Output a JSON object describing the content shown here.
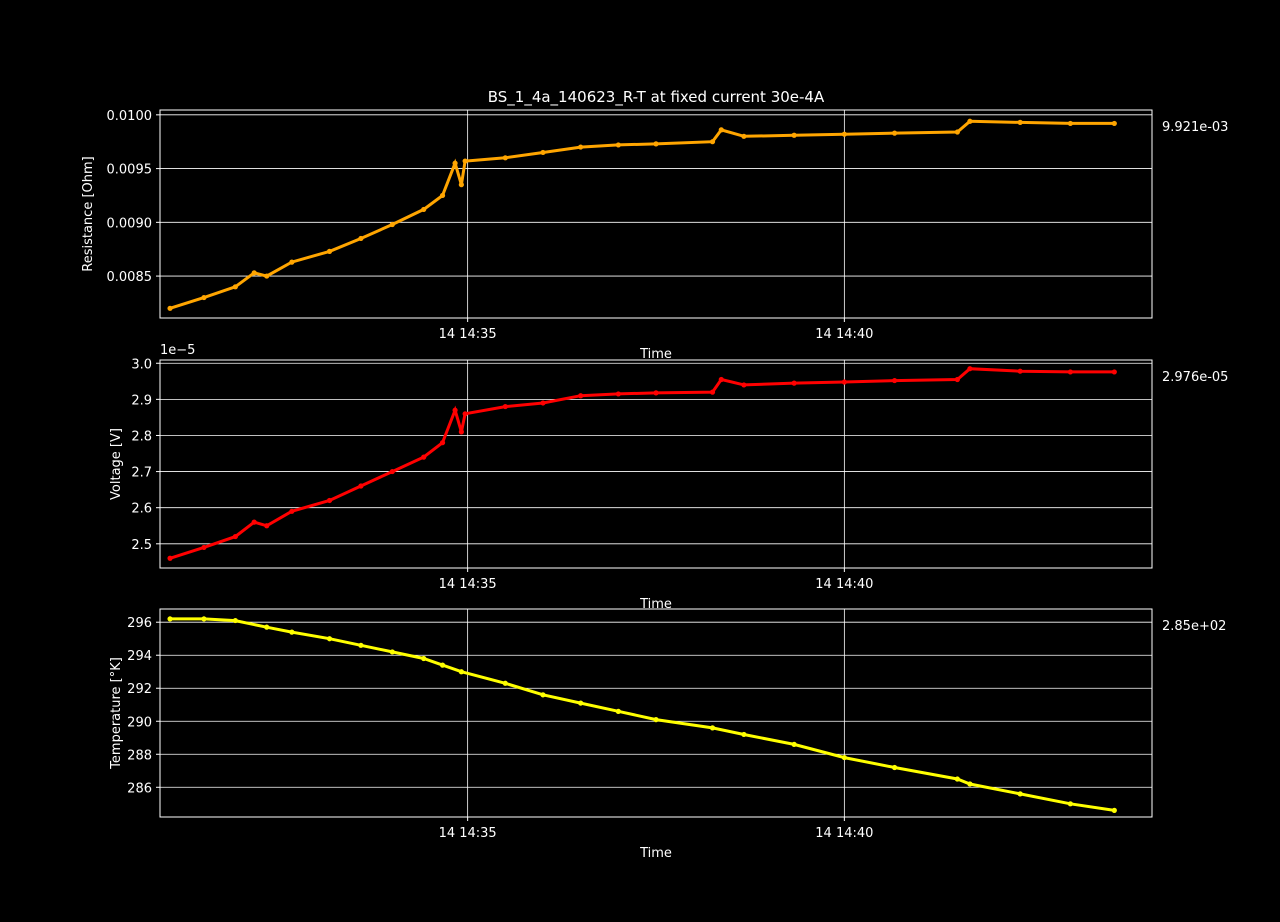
{
  "figure": {
    "title": "BS_1_4a_140623_R-T at fixed current 30e-4A",
    "background": "#000000",
    "text_color": "#ffffff",
    "grid_color": "#ffffff"
  },
  "chart_data": [
    {
      "type": "scatter",
      "xlabel": "Time",
      "ylabel": "Resistance [Ohm]",
      "x_range": [
        "14 14:30:55",
        "14 14:44:05"
      ],
      "xticks": [
        "14 14:35",
        "14 14:40"
      ],
      "yticks": [
        "0.0085",
        "0.0090",
        "0.0095",
        "0.0100"
      ],
      "ylim": [
        0.00811,
        0.010045
      ],
      "offset_text": "",
      "last_value_label": "9.921e-03",
      "grid": true,
      "color": "#ffa500",
      "points": [
        [
          "14 14:31:03",
          0.0082
        ],
        [
          "14 14:31:30",
          0.0083
        ],
        [
          "14 14:31:55",
          0.0084
        ],
        [
          "14 14:32:10",
          0.00853
        ],
        [
          "14 14:32:20",
          0.0085
        ],
        [
          "14 14:32:40",
          0.00863
        ],
        [
          "14 14:33:10",
          0.00873
        ],
        [
          "14 14:33:35",
          0.00885
        ],
        [
          "14 14:34:00",
          0.00898
        ],
        [
          "14 14:34:25",
          0.00912
        ],
        [
          "14 14:34:40",
          0.00925
        ],
        [
          "14 14:34:55",
          0.00935
        ],
        [
          "14 14:34:50",
          0.00955
        ],
        [
          "14 14:34:58",
          0.00957
        ],
        [
          "14 14:35:30",
          0.0096
        ],
        [
          "14 14:36:00",
          0.00965
        ],
        [
          "14 14:36:30",
          0.0097
        ],
        [
          "14 14:37:00",
          0.00972
        ],
        [
          "14 14:37:30",
          0.00973
        ],
        [
          "14 14:38:15",
          0.00975
        ],
        [
          "14 14:38:22",
          0.00986
        ],
        [
          "14 14:38:40",
          0.0098
        ],
        [
          "14 14:39:20",
          0.00981
        ],
        [
          "14 14:40:00",
          0.00982
        ],
        [
          "14 14:40:40",
          0.00983
        ],
        [
          "14 14:41:30",
          0.00984
        ],
        [
          "14 14:41:40",
          0.00994
        ],
        [
          "14 14:42:20",
          0.00993
        ],
        [
          "14 14:43:00",
          0.00992
        ],
        [
          "14 14:43:35",
          0.00992
        ]
      ]
    },
    {
      "type": "scatter",
      "xlabel": "Time",
      "ylabel": "Voltage [V]",
      "x_range": [
        "14 14:30:55",
        "14 14:44:05"
      ],
      "xticks": [
        "14 14:35",
        "14 14:40"
      ],
      "yticks": [
        "2.5",
        "2.6",
        "2.7",
        "2.8",
        "2.9",
        "3.0"
      ],
      "ylim": [
        2.433,
        3.009
      ],
      "offset_text": "1e−5",
      "last_value_label": "2.976e-05",
      "grid": true,
      "color": "#ff0000",
      "points": [
        [
          "14 14:31:03",
          2.46
        ],
        [
          "14 14:31:30",
          2.49
        ],
        [
          "14 14:31:55",
          2.52
        ],
        [
          "14 14:32:10",
          2.56
        ],
        [
          "14 14:32:20",
          2.55
        ],
        [
          "14 14:32:40",
          2.59
        ],
        [
          "14 14:33:10",
          2.62
        ],
        [
          "14 14:33:35",
          2.66
        ],
        [
          "14 14:34:00",
          2.7
        ],
        [
          "14 14:34:25",
          2.74
        ],
        [
          "14 14:34:40",
          2.78
        ],
        [
          "14 14:34:55",
          2.81
        ],
        [
          "14 14:34:50",
          2.87
        ],
        [
          "14 14:34:58",
          2.86
        ],
        [
          "14 14:35:30",
          2.88
        ],
        [
          "14 14:36:00",
          2.89
        ],
        [
          "14 14:36:30",
          2.91
        ],
        [
          "14 14:37:00",
          2.915
        ],
        [
          "14 14:37:30",
          2.918
        ],
        [
          "14 14:38:15",
          2.92
        ],
        [
          "14 14:38:22",
          2.955
        ],
        [
          "14 14:38:40",
          2.94
        ],
        [
          "14 14:39:20",
          2.945
        ],
        [
          "14 14:40:00",
          2.948
        ],
        [
          "14 14:40:40",
          2.952
        ],
        [
          "14 14:41:30",
          2.955
        ],
        [
          "14 14:41:40",
          2.985
        ],
        [
          "14 14:42:20",
          2.978
        ],
        [
          "14 14:43:00",
          2.976
        ],
        [
          "14 14:43:35",
          2.976
        ]
      ]
    },
    {
      "type": "scatter",
      "xlabel": "Time",
      "ylabel": "Temperature [°K]",
      "x_range": [
        "14 14:30:55",
        "14 14:44:05"
      ],
      "xticks": [
        "14 14:35",
        "14 14:40"
      ],
      "yticks": [
        "286",
        "288",
        "290",
        "292",
        "294",
        "296"
      ],
      "ylim": [
        284.2,
        296.8
      ],
      "offset_text": "",
      "last_value_label": "2.85e+02",
      "grid": true,
      "color": "#ffff00",
      "points": [
        [
          "14 14:31:03",
          296.2
        ],
        [
          "14 14:31:30",
          296.2
        ],
        [
          "14 14:31:55",
          296.1
        ],
        [
          "14 14:32:20",
          295.7
        ],
        [
          "14 14:32:40",
          295.4
        ],
        [
          "14 14:33:10",
          295.0
        ],
        [
          "14 14:33:35",
          294.6
        ],
        [
          "14 14:34:00",
          294.2
        ],
        [
          "14 14:34:25",
          293.8
        ],
        [
          "14 14:34:40",
          293.4
        ],
        [
          "14 14:34:55",
          293.0
        ],
        [
          "14 14:35:30",
          292.3
        ],
        [
          "14 14:36:00",
          291.6
        ],
        [
          "14 14:36:30",
          291.1
        ],
        [
          "14 14:37:00",
          290.6
        ],
        [
          "14 14:37:30",
          290.1
        ],
        [
          "14 14:38:15",
          289.6
        ],
        [
          "14 14:38:40",
          289.2
        ],
        [
          "14 14:39:20",
          288.6
        ],
        [
          "14 14:40:00",
          287.8
        ],
        [
          "14 14:40:40",
          287.2
        ],
        [
          "14 14:41:30",
          286.5
        ],
        [
          "14 14:41:40",
          286.2
        ],
        [
          "14 14:42:20",
          285.6
        ],
        [
          "14 14:43:00",
          285.0
        ],
        [
          "14 14:43:35",
          284.6
        ]
      ]
    }
  ]
}
